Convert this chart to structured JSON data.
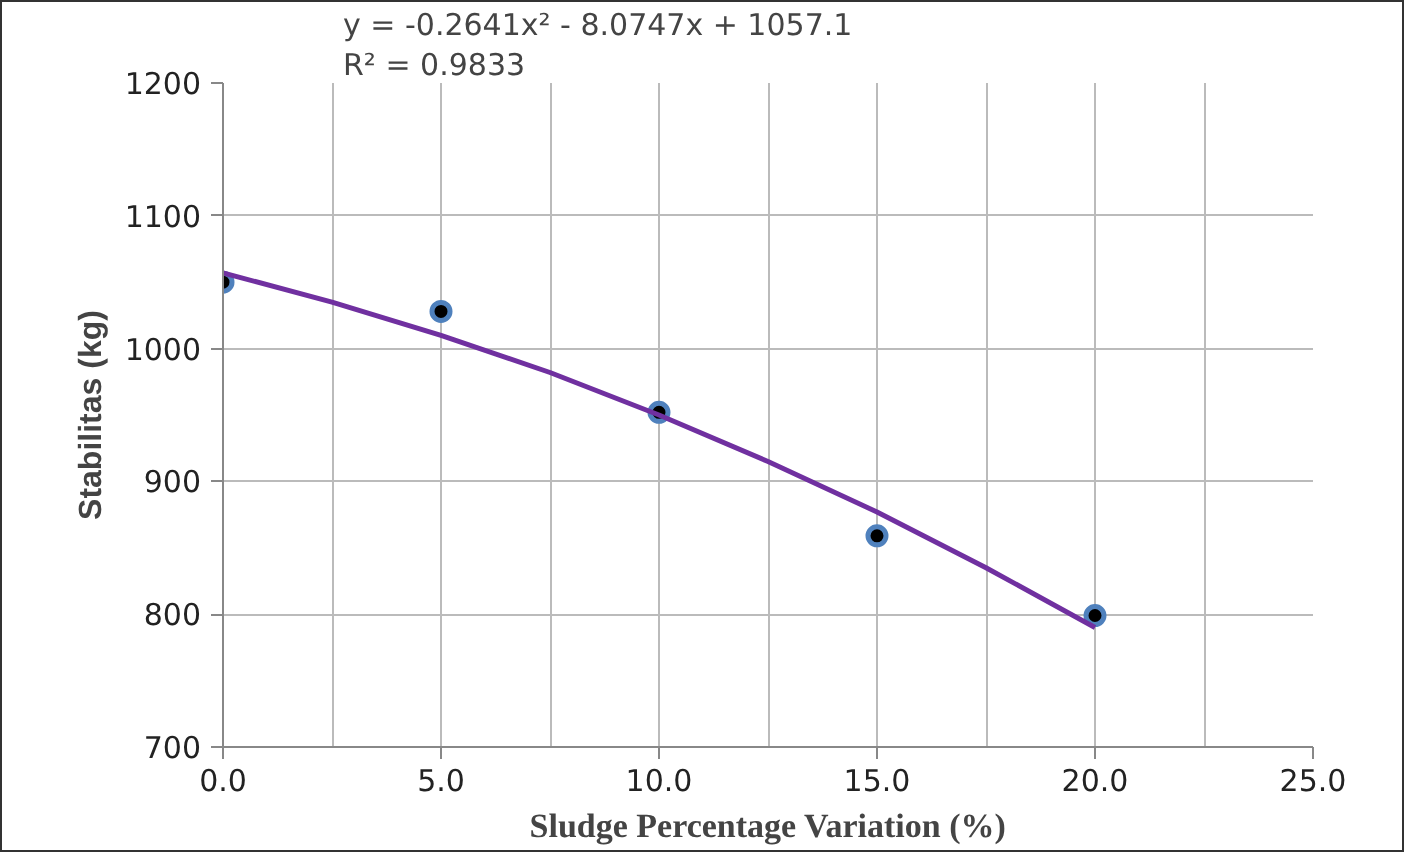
{
  "chart_data": {
    "type": "scatter",
    "xlabel": "Sludge Percentage Variation (%)",
    "ylabel": "Stabilitas (kg)",
    "annotations": [
      "y = -0.2641x² - 8.0747x + 1057.1",
      "R² = 0.9833"
    ],
    "xlim": [
      0,
      25
    ],
    "ylim": [
      700,
      1200
    ],
    "xticks": [
      {
        "value": 0,
        "label": "0.0"
      },
      {
        "value": 2.5,
        "label": null
      },
      {
        "value": 5,
        "label": "5.0"
      },
      {
        "value": 7.5,
        "label": null
      },
      {
        "value": 10,
        "label": "10.0"
      },
      {
        "value": 12.5,
        "label": null
      },
      {
        "value": 15,
        "label": "15.0"
      },
      {
        "value": 17.5,
        "label": null
      },
      {
        "value": 20,
        "label": "20.0"
      },
      {
        "value": 22.5,
        "label": null
      },
      {
        "value": 25,
        "label": "25.0"
      }
    ],
    "yticks": [
      700,
      800,
      900,
      1000,
      1100,
      1200
    ],
    "grid": true,
    "series": [
      {
        "marker": "circle",
        "color": "#4f81bd",
        "x": [
          0,
          5,
          10,
          15,
          20
        ],
        "values": [
          1050,
          1028,
          952,
          859,
          799
        ]
      },
      {
        "type": "line",
        "color": "#7030a0",
        "x": [
          0,
          2.5,
          5,
          7.5,
          10,
          12.5,
          15,
          17.5,
          20
        ],
        "values": [
          1057,
          1035,
          1010,
          982,
          950,
          915,
          877,
          835,
          790
        ]
      }
    ]
  }
}
